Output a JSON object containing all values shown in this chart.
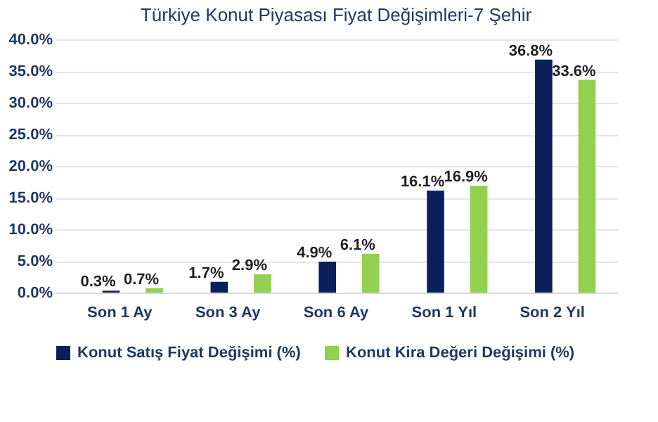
{
  "chart_data": {
    "type": "bar",
    "title": "Türkiye Konut Piyasası Fiyat Değişimleri-7 Şehir",
    "categories": [
      "Son 1 Ay",
      "Son 3 Ay",
      "Son 6 Ay",
      "Son 1 Yıl",
      "Son 2 Yıl"
    ],
    "series": [
      {
        "name": "Konut Satış Fiyat Değişimi (%)",
        "color": "#0b1f5c",
        "values": [
          0.3,
          1.7,
          4.9,
          16.1,
          36.8
        ],
        "value_labels": [
          "0.3%",
          "1.7%",
          "4.9%",
          "16.1%",
          "36.8%"
        ]
      },
      {
        "name": "Konut Kira Değeri Değişimi (%)",
        "color": "#92d050",
        "values": [
          0.7,
          2.9,
          6.1,
          16.9,
          33.6
        ],
        "value_labels": [
          "0.7%",
          "2.9%",
          "6.1%",
          "16.9%",
          "33.6%"
        ]
      }
    ],
    "ylim": [
      0,
      40
    ],
    "yticks": [
      {
        "value": 0,
        "label": "0.0%"
      },
      {
        "value": 5,
        "label": "5.0%"
      },
      {
        "value": 10,
        "label": "10.0%"
      },
      {
        "value": 15,
        "label": "15.0%"
      },
      {
        "value": 20,
        "label": "20.0%"
      },
      {
        "value": 25,
        "label": "25.0%"
      },
      {
        "value": 30,
        "label": "30.0%"
      },
      {
        "value": 35,
        "label": "35.0%"
      },
      {
        "value": 40,
        "label": "40.0%"
      }
    ],
    "grid": "y",
    "legend": "bottom"
  }
}
